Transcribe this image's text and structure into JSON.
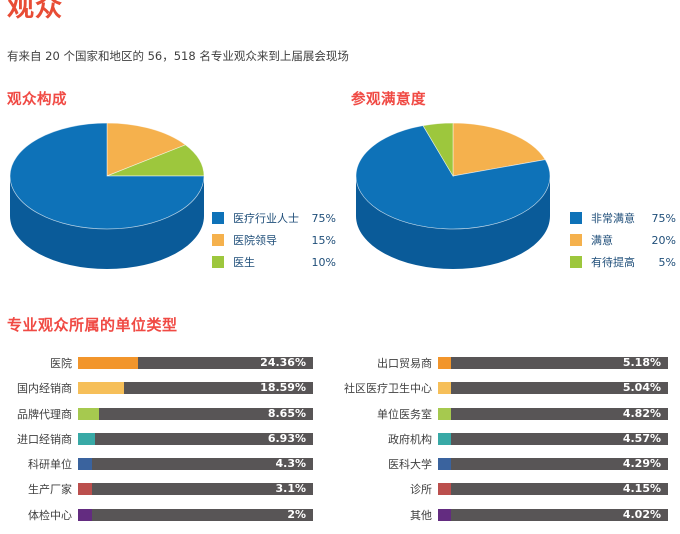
{
  "page": {
    "title": "观众",
    "subtitle": "有来自 20 个国家和地区的 56，518 名专业观众来到上届展会现场"
  },
  "colors": {
    "title_red": "#e84c35",
    "heading_red": "#f04a44",
    "legend_text": "#1f4e79",
    "bar_track": "#585556",
    "bar_label": "#3f3f3f",
    "bar_value_text": "#ffffff",
    "pie_side_blue": "#0a5b99"
  },
  "chart_data": [
    {
      "type": "pie",
      "style": "3d",
      "title": "观众构成",
      "legend_position": "right",
      "slices": [
        {
          "label": "医疗行业人士",
          "value": 75,
          "value_label": "75%",
          "color": "#0e72b8"
        },
        {
          "label": "医院领导",
          "value": 15,
          "value_label": "15%",
          "color": "#f5b14d"
        },
        {
          "label": "医生",
          "value": 10,
          "value_label": "10%",
          "color": "#9dc73d"
        }
      ],
      "draw_order_clockwise_from_top": [
        1,
        2,
        0
      ],
      "side_color": "#0a5b99"
    },
    {
      "type": "pie",
      "style": "3d",
      "title": "参观满意度",
      "legend_position": "right",
      "slices": [
        {
          "label": "非常满意",
          "value": 75,
          "value_label": "75%",
          "color": "#0e72b8"
        },
        {
          "label": "满意",
          "value": 20,
          "value_label": "20%",
          "color": "#f5b14d"
        },
        {
          "label": "有待提高",
          "value": 5,
          "value_label": "5%",
          "color": "#9dc73d"
        }
      ],
      "draw_order_clockwise_from_top": [
        1,
        0,
        2
      ],
      "side_color": "#0a5b99"
    },
    {
      "type": "bar",
      "orientation": "horizontal",
      "title": "专业观众所属的单位类型",
      "row_colors": [
        "#f2952b",
        "#f6bf59",
        "#a6c94f",
        "#38a9a6",
        "#3a639e",
        "#bb4f4d",
        "#632c80"
      ],
      "track_color": "#585556",
      "columns": [
        {
          "categories": [
            "医院",
            "国内经销商",
            "品牌代理商",
            "进口经销商",
            "科研单位",
            "生产厂家",
            "体检中心"
          ],
          "values": [
            24.36,
            18.59,
            8.65,
            6.93,
            4.3,
            3.1,
            2
          ],
          "value_labels": [
            "24.36%",
            "18.59%",
            "8.65%",
            "6.93%",
            "4.3%",
            "3.1%",
            "2%"
          ]
        },
        {
          "categories": [
            "出口贸易商",
            "社区医疗卫生中心",
            "单位医务室",
            "政府机构",
            "医科大学",
            "诊所",
            "其他"
          ],
          "values": [
            5.18,
            5.04,
            4.82,
            4.57,
            4.29,
            4.15,
            4.02
          ],
          "value_labels": [
            "5.18%",
            "5.04%",
            "4.82%",
            "4.57%",
            "4.29%",
            "4.15%",
            "4.02%"
          ]
        }
      ]
    }
  ]
}
